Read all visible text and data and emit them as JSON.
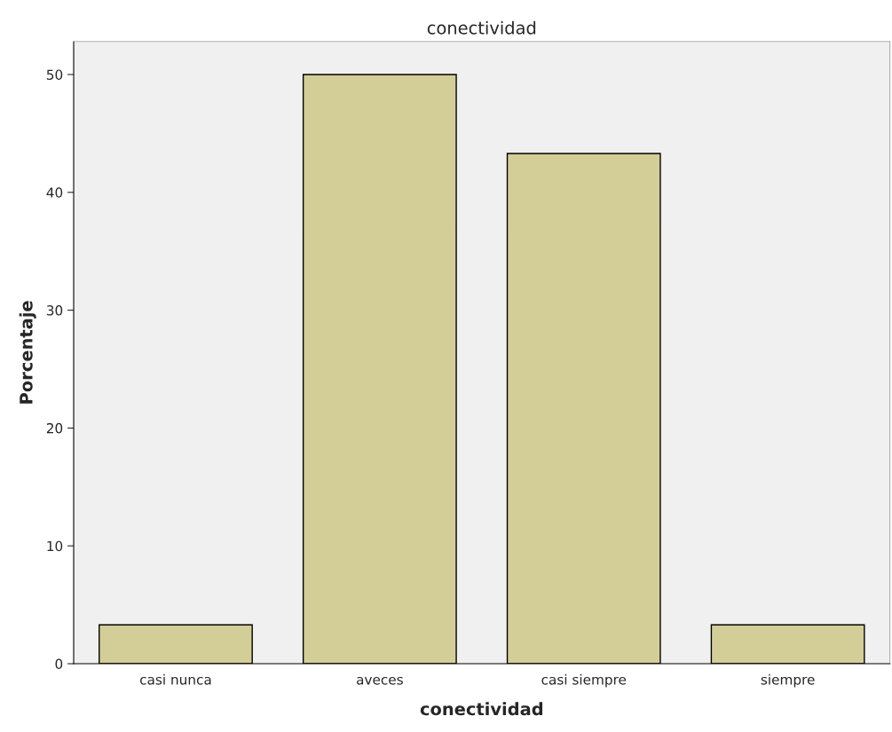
{
  "chart_data": {
    "type": "bar",
    "title": "conectividad",
    "xlabel": "conectividad",
    "ylabel": "Porcentaje",
    "categories": [
      "casi nunca",
      "aveces",
      "casi siempre",
      "siempre"
    ],
    "values": [
      3.3,
      50.0,
      43.3,
      3.3
    ],
    "color": "#d3ce97",
    "ylim": [
      0,
      52.8
    ],
    "yticks": [
      0,
      10,
      20,
      30,
      40,
      50
    ],
    "grid": false
  }
}
